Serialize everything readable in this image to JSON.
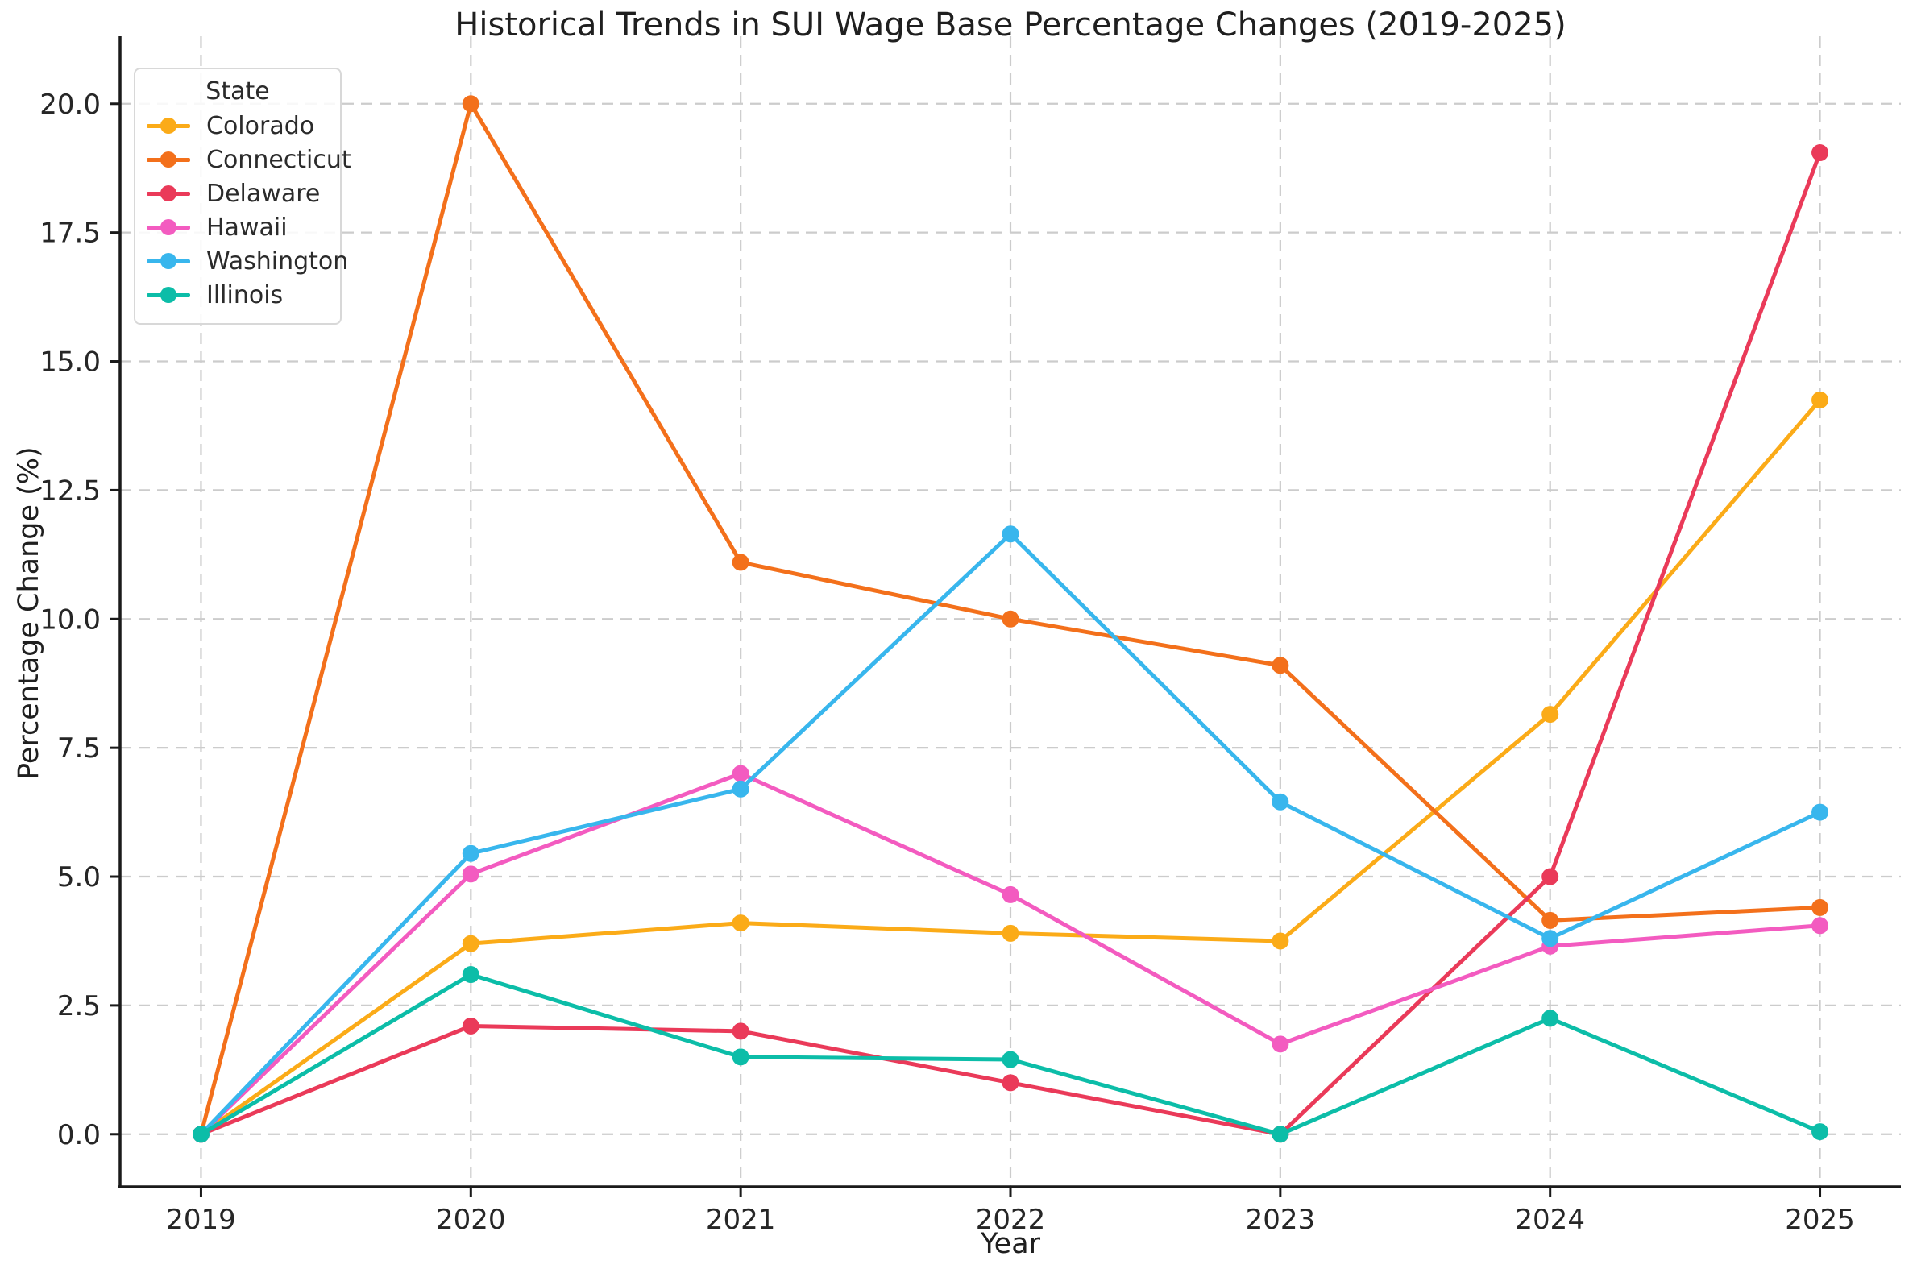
{
  "chart_data": {
    "type": "line",
    "title": "Historical Trends in SUI Wage Base Percentage Changes (2019-2025)",
    "xlabel": "Year",
    "ylabel": "Percentage Change (%)",
    "x": [
      2019,
      2020,
      2021,
      2022,
      2023,
      2024,
      2025
    ],
    "series": [
      {
        "name": "Colorado",
        "color": "#FBAB18",
        "values": [
          0.0,
          3.7,
          4.1,
          3.9,
          3.75,
          8.15,
          14.25
        ]
      },
      {
        "name": "Connecticut",
        "color": "#F3701B",
        "values": [
          0.0,
          20.0,
          11.1,
          10.0,
          9.1,
          4.15,
          4.4
        ]
      },
      {
        "name": "Delaware",
        "color": "#EA3A59",
        "values": [
          0.0,
          2.1,
          2.0,
          1.0,
          0.0,
          5.0,
          19.05
        ]
      },
      {
        "name": "Hawaii",
        "color": "#F35BC0",
        "values": [
          0.0,
          5.05,
          7.0,
          4.65,
          1.75,
          3.65,
          4.05
        ]
      },
      {
        "name": "Washington",
        "color": "#38B6ED",
        "values": [
          0.0,
          5.45,
          6.7,
          11.65,
          6.45,
          3.8,
          6.25
        ]
      },
      {
        "name": "Illinois",
        "color": "#0CBDA8",
        "values": [
          0.0,
          3.1,
          1.5,
          1.45,
          0.0,
          2.25,
          0.05
        ]
      }
    ],
    "legend": {
      "title": "State",
      "position": "upper-left"
    },
    "yticks": [
      0.0,
      2.5,
      5.0,
      7.5,
      10.0,
      12.5,
      15.0,
      17.5,
      20.0
    ],
    "ylim": [
      -1.02,
      21.31
    ],
    "xlim": [
      2018.7,
      2025.3
    ],
    "grid": true,
    "grid_color": "#cccccc",
    "axis_color": "#1a1a1a",
    "tick_label_color": "#262626"
  }
}
